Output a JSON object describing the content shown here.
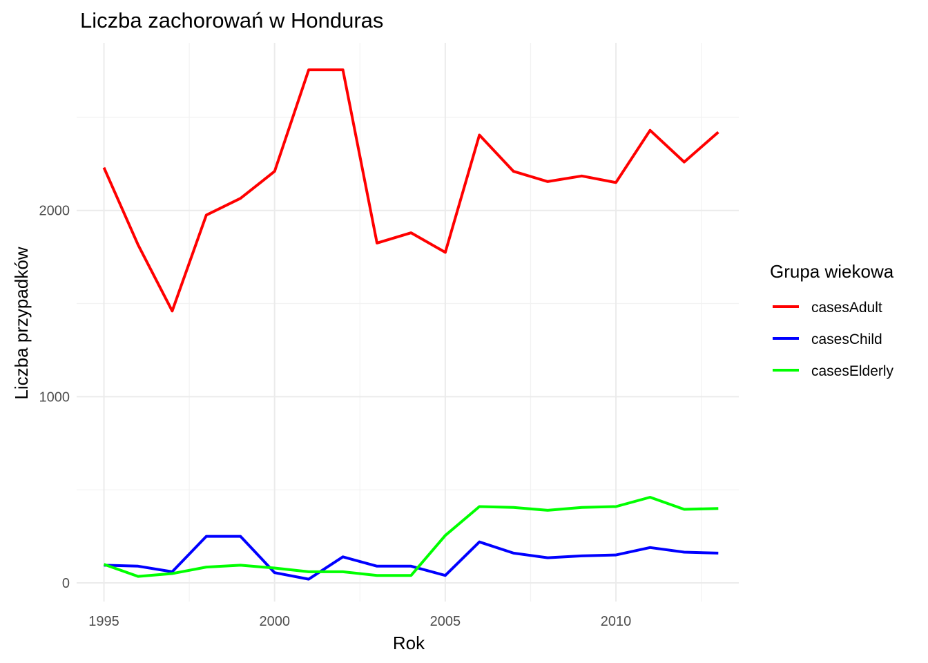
{
  "chart_data": {
    "type": "line",
    "title": "Liczba zachorowań w Honduras",
    "xlabel": "Rok",
    "ylabel": "Liczba przypadków",
    "x": [
      1995,
      1996,
      1997,
      1998,
      1999,
      2000,
      2001,
      2002,
      2003,
      2004,
      2005,
      2006,
      2007,
      2008,
      2009,
      2010,
      2011,
      2012,
      2013
    ],
    "xlim": [
      1994.2,
      2013.6
    ],
    "ylim": [
      -100,
      2900
    ],
    "x_ticks": [
      1995,
      2000,
      2005,
      2010
    ],
    "x_tick_labels": [
      "1995",
      "2000",
      "2005",
      "2010"
    ],
    "x_minor_ticks": [
      1997.5,
      2002.5,
      2007.5,
      2012.5
    ],
    "y_ticks": [
      0,
      1000,
      2000
    ],
    "y_tick_labels": [
      "0",
      "1000",
      "2000"
    ],
    "y_minor_ticks": [
      500,
      1500,
      2500
    ],
    "grid": true,
    "legend": {
      "title": "Grupa wiekowa",
      "position": "right"
    },
    "series": [
      {
        "name": "casesAdult",
        "color": "#ff0000",
        "values": [
          2230,
          1815,
          1460,
          1975,
          2065,
          2210,
          2755,
          2755,
          1825,
          1880,
          1775,
          2405,
          2210,
          2155,
          2185,
          2150,
          2430,
          2260,
          2420
        ]
      },
      {
        "name": "casesChild",
        "color": "#0000ff",
        "values": [
          95,
          90,
          60,
          250,
          250,
          55,
          20,
          140,
          90,
          90,
          40,
          220,
          160,
          135,
          145,
          150,
          190,
          165,
          160
        ]
      },
      {
        "name": "casesElderly",
        "color": "#00ff00",
        "values": [
          100,
          35,
          50,
          85,
          95,
          80,
          60,
          60,
          40,
          40,
          255,
          410,
          405,
          390,
          405,
          410,
          460,
          395,
          400
        ]
      }
    ]
  }
}
